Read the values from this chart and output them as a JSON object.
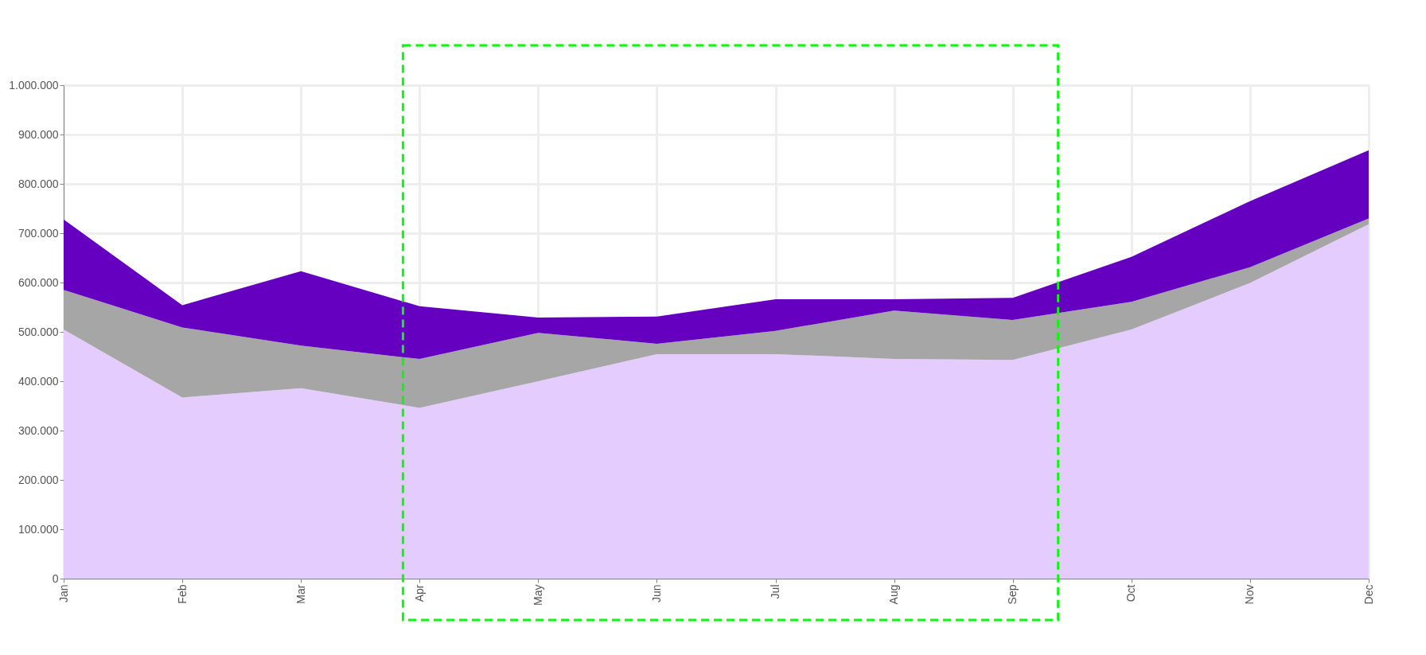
{
  "chart_data": {
    "type": "area",
    "stacked": true,
    "categories": [
      "Jan",
      "Feb",
      "Mar",
      "Apr",
      "May",
      "Jun",
      "Jul",
      "Aug",
      "Sep",
      "Oct",
      "Nov",
      "Dec"
    ],
    "series": [
      {
        "color": "#e5ccff",
        "values": [
          505000,
          367000,
          386000,
          346000,
          400000,
          455000,
          455000,
          445000,
          443000,
          505000,
          599000,
          718000
        ]
      },
      {
        "color": "#a6a6a6",
        "values": [
          80000,
          142000,
          86000,
          99000,
          98000,
          21000,
          47000,
          98000,
          81000,
          56000,
          32000,
          12000
        ]
      },
      {
        "color": "#6600c0",
        "values": [
          143000,
          45000,
          151000,
          107000,
          31000,
          55000,
          64000,
          23000,
          45000,
          91000,
          134000,
          138000
        ]
      }
    ],
    "ylim": [
      0,
      1000000
    ],
    "yticks": [
      {
        "value": 0,
        "label": "0"
      },
      {
        "value": 100000,
        "label": "100.000"
      },
      {
        "value": 200000,
        "label": "200.000"
      },
      {
        "value": 300000,
        "label": "300.000"
      },
      {
        "value": 400000,
        "label": "400.000"
      },
      {
        "value": 500000,
        "label": "500.000"
      },
      {
        "value": 600000,
        "label": "600.000"
      },
      {
        "value": 700000,
        "label": "700.000"
      },
      {
        "value": 800000,
        "label": "800.000"
      },
      {
        "value": 900000,
        "label": "900.000"
      },
      {
        "value": 1000000,
        "label": "1.000.000"
      }
    ],
    "grid": true
  }
}
